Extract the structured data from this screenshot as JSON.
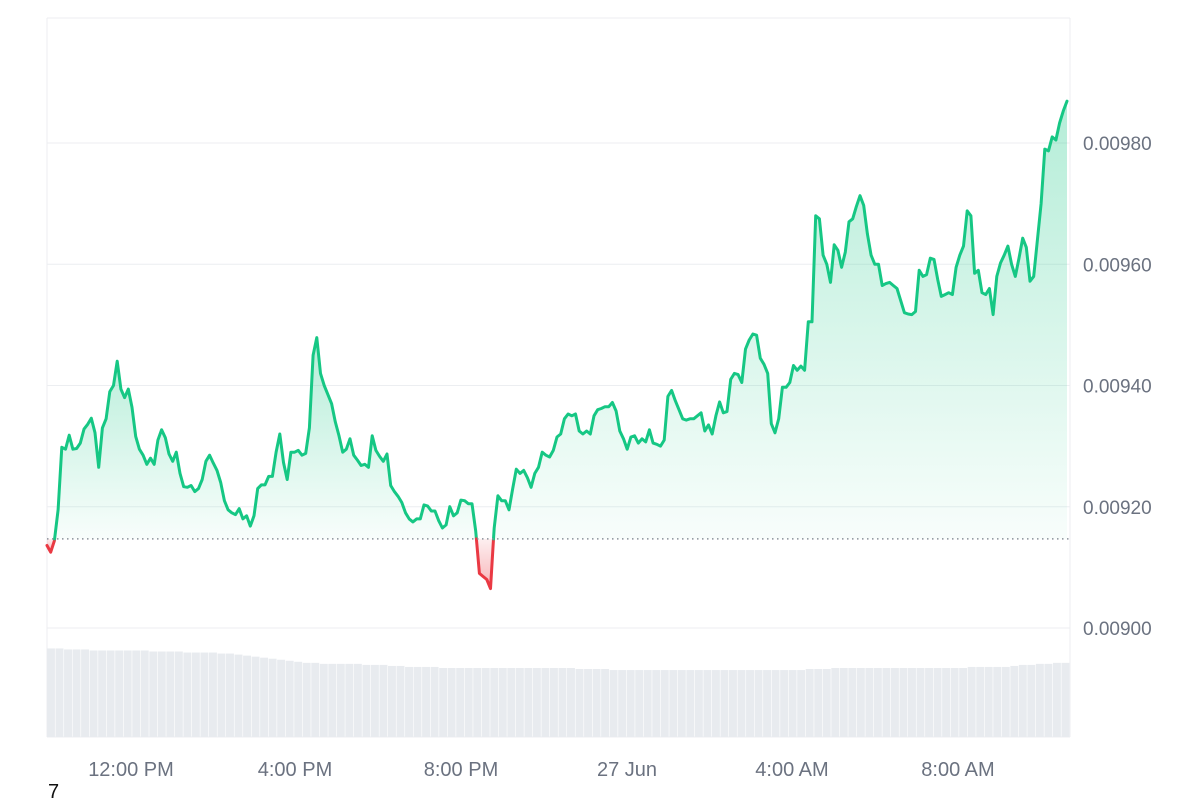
{
  "chart_data": {
    "type": "area",
    "x_ticks": [
      "12:00 PM",
      "4:00 PM",
      "8:00 PM",
      "27 Jun",
      "4:00 AM",
      "8:00 AM"
    ],
    "y_ticks": [
      "0.00900",
      "0.00920",
      "0.00940",
      "0.00960",
      "0.00980"
    ],
    "ylim": [
      0.00882,
      0.00997
    ],
    "baseline": 0.009147,
    "grid": true,
    "colors": {
      "up": "#16c784",
      "down": "#ea3943",
      "volume": "#e8ebef"
    },
    "prices": [
      0.009136,
      0.009125,
      0.009144,
      0.009195,
      0.009298,
      0.009295,
      0.009318,
      0.009295,
      0.009296,
      0.009305,
      0.009328,
      0.009336,
      0.009346,
      0.009322,
      0.009265,
      0.00933,
      0.009345,
      0.00939,
      0.0094,
      0.00944,
      0.009394,
      0.00938,
      0.009394,
      0.009364,
      0.009316,
      0.009295,
      0.009285,
      0.00927,
      0.00928,
      0.00927,
      0.00931,
      0.009327,
      0.009314,
      0.009287,
      0.009275,
      0.00929,
      0.009255,
      0.009233,
      0.009232,
      0.009235,
      0.009225,
      0.00923,
      0.009245,
      0.009275,
      0.009285,
      0.009272,
      0.00926,
      0.00924,
      0.00921,
      0.009195,
      0.00919,
      0.009187,
      0.009197,
      0.00918,
      0.009185,
      0.009168,
      0.009185,
      0.00923,
      0.009236,
      0.009236,
      0.00925,
      0.00925,
      0.00929,
      0.00932,
      0.009273,
      0.009245,
      0.00929,
      0.00929,
      0.009293,
      0.009285,
      0.009288,
      0.00933,
      0.00945,
      0.009479,
      0.00942,
      0.0094,
      0.009385,
      0.00937,
      0.00934,
      0.009317,
      0.00929,
      0.009295,
      0.009312,
      0.009285,
      0.009277,
      0.009268,
      0.00927,
      0.009265,
      0.009317,
      0.009293,
      0.009283,
      0.009275,
      0.009287,
      0.009235,
      0.009225,
      0.009217,
      0.009207,
      0.00919,
      0.00918,
      0.009175,
      0.00918,
      0.00918,
      0.009203,
      0.009201,
      0.009193,
      0.009193,
      0.009177,
      0.009165,
      0.00917,
      0.0092,
      0.009185,
      0.00919,
      0.009211,
      0.00921,
      0.009205,
      0.009205,
      0.00916,
      0.00909,
      0.009085,
      0.00908,
      0.009065,
      0.009165,
      0.009218,
      0.00921,
      0.00921,
      0.009195,
      0.00923,
      0.009262,
      0.009255,
      0.00926,
      0.009248,
      0.009232,
      0.009255,
      0.009265,
      0.00929,
      0.009285,
      0.009282,
      0.009293,
      0.009315,
      0.00932,
      0.009345,
      0.009353,
      0.00935,
      0.009353,
      0.009325,
      0.00932,
      0.009325,
      0.00932,
      0.00935,
      0.00936,
      0.009362,
      0.009365,
      0.009365,
      0.009372,
      0.009358,
      0.009325,
      0.009312,
      0.009295,
      0.009315,
      0.009317,
      0.009305,
      0.009312,
      0.009307,
      0.009327,
      0.009305,
      0.009303,
      0.0093,
      0.00931,
      0.009382,
      0.009392,
      0.009375,
      0.00936,
      0.009345,
      0.009343,
      0.009345,
      0.009345,
      0.00935,
      0.009355,
      0.009325,
      0.009335,
      0.00932,
      0.00935,
      0.009373,
      0.009355,
      0.009357,
      0.00941,
      0.00942,
      0.009418,
      0.009405,
      0.00946,
      0.009475,
      0.009485,
      0.009483,
      0.009445,
      0.009435,
      0.00942,
      0.009337,
      0.009322,
      0.009345,
      0.009397,
      0.009397,
      0.009405,
      0.009433,
      0.009425,
      0.009432,
      0.009425,
      0.009505,
      0.009505,
      0.00968,
      0.009675,
      0.009615,
      0.0096,
      0.00957,
      0.009632,
      0.009623,
      0.009595,
      0.00962,
      0.00967,
      0.009675,
      0.009695,
      0.009713,
      0.009697,
      0.00965,
      0.009615,
      0.0096,
      0.0096,
      0.009565,
      0.009568,
      0.00957,
      0.009565,
      0.00956,
      0.00954,
      0.00952,
      0.009518,
      0.009517,
      0.009522,
      0.00959,
      0.00958,
      0.009583,
      0.00961,
      0.009608,
      0.009575,
      0.009547,
      0.00955,
      0.009553,
      0.00955,
      0.009595,
      0.009615,
      0.00963,
      0.009688,
      0.00968,
      0.009585,
      0.00959,
      0.009553,
      0.00955,
      0.00956,
      0.009517,
      0.00958,
      0.009602,
      0.009615,
      0.00963,
      0.0096,
      0.00958,
      0.00961,
      0.009643,
      0.009628,
      0.009572,
      0.00958,
      0.00964,
      0.0097,
      0.00979,
      0.009787,
      0.00981,
      0.009805,
      0.009833,
      0.009853,
      0.009869
    ],
    "volumes": [
      0.86,
      0.86,
      0.85,
      0.85,
      0.85,
      0.84,
      0.84,
      0.84,
      0.84,
      0.84,
      0.84,
      0.84,
      0.83,
      0.83,
      0.83,
      0.83,
      0.82,
      0.82,
      0.82,
      0.82,
      0.81,
      0.81,
      0.8,
      0.79,
      0.78,
      0.77,
      0.76,
      0.75,
      0.74,
      0.73,
      0.72,
      0.72,
      0.71,
      0.71,
      0.71,
      0.71,
      0.71,
      0.7,
      0.7,
      0.7,
      0.69,
      0.69,
      0.68,
      0.68,
      0.68,
      0.68,
      0.67,
      0.67,
      0.67,
      0.67,
      0.67,
      0.67,
      0.67,
      0.67,
      0.67,
      0.67,
      0.67,
      0.67,
      0.67,
      0.67,
      0.67,
      0.67,
      0.66,
      0.66,
      0.66,
      0.66,
      0.65,
      0.65,
      0.65,
      0.65,
      0.65,
      0.65,
      0.65,
      0.65,
      0.65,
      0.65,
      0.65,
      0.65,
      0.65,
      0.65,
      0.65,
      0.65,
      0.65,
      0.65,
      0.65,
      0.65,
      0.65,
      0.65,
      0.65,
      0.66,
      0.66,
      0.66,
      0.67,
      0.67,
      0.67,
      0.67,
      0.67,
      0.67,
      0.67,
      0.67,
      0.67,
      0.67,
      0.67,
      0.67,
      0.67,
      0.67,
      0.67,
      0.67,
      0.68,
      0.68,
      0.68,
      0.68,
      0.68,
      0.69,
      0.7,
      0.7,
      0.71,
      0.71,
      0.72,
      0.72
    ]
  },
  "footer": {
    "label": "7"
  }
}
